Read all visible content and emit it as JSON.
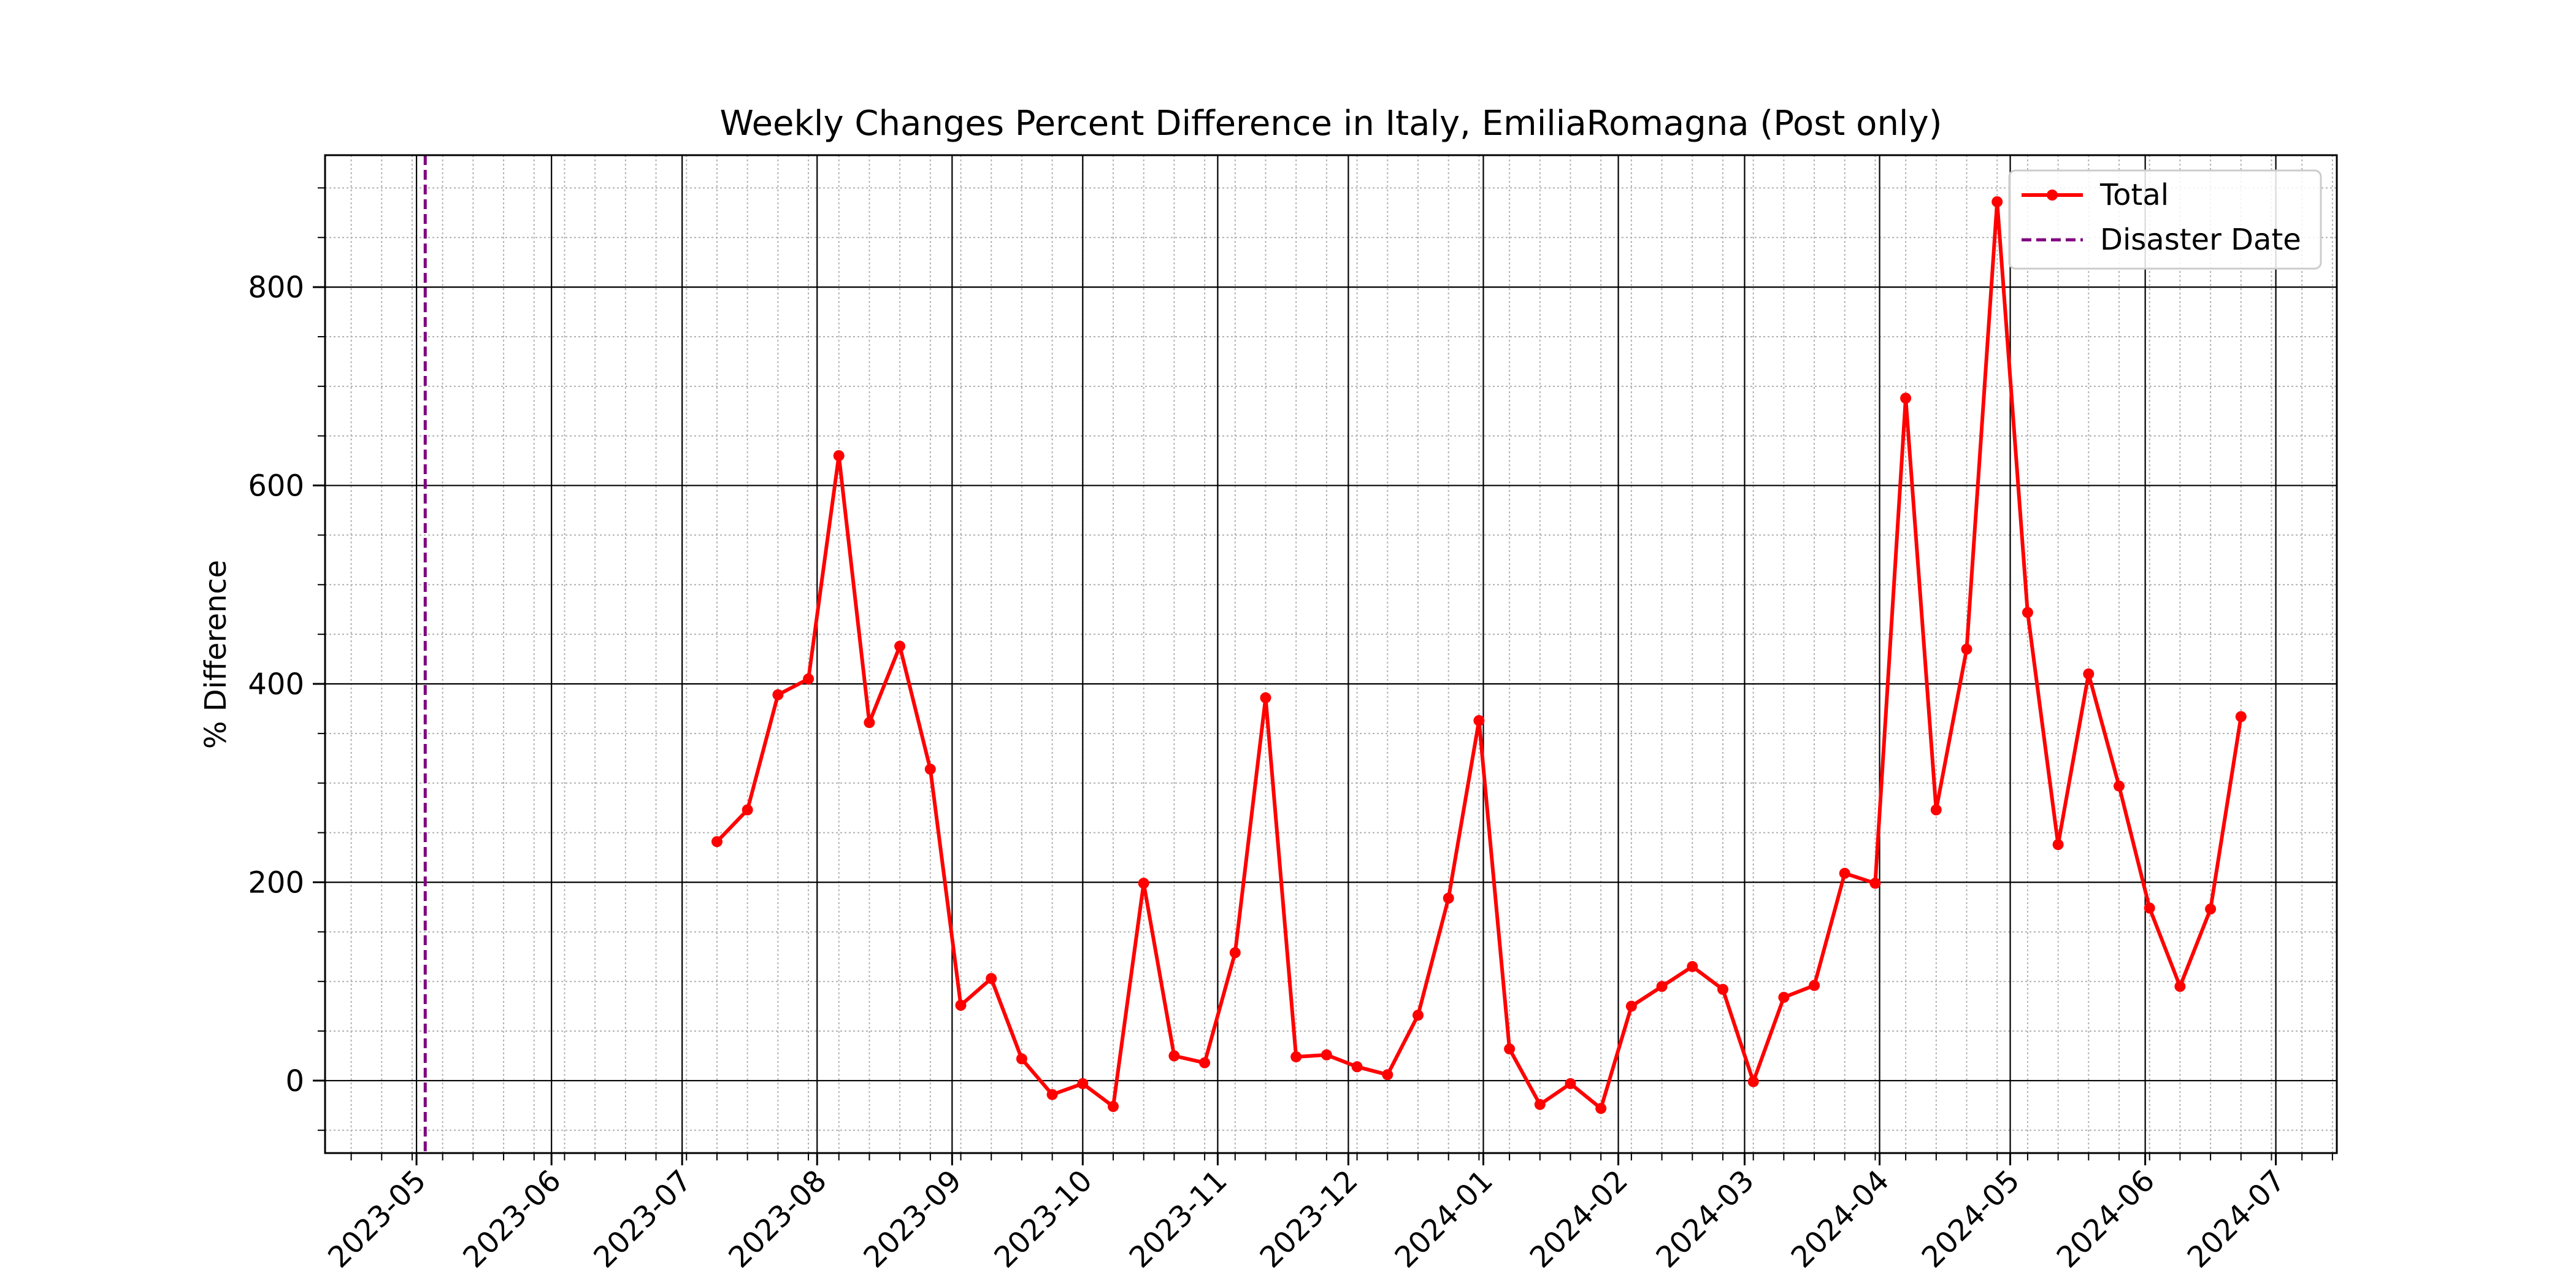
{
  "chart_data": {
    "type": "line",
    "title": "Weekly Changes Percent Difference in Italy, EmiliaRomagna (Post only)",
    "xlabel": "",
    "ylabel": "% Difference",
    "x_ticks": [
      "2023-05",
      "2023-06",
      "2023-07",
      "2023-08",
      "2023-09",
      "2023-10",
      "2023-11",
      "2023-12",
      "2024-01",
      "2024-02",
      "2024-03",
      "2024-04",
      "2024-05",
      "2024-06",
      "2024-07"
    ],
    "y_ticks": [
      0,
      200,
      400,
      600,
      800
    ],
    "xlim": [
      "2023-04-10",
      "2024-07-15"
    ],
    "ylim": [
      -73,
      933
    ],
    "grid": {
      "major": true,
      "minor": true
    },
    "legend": {
      "position": "upper right",
      "entries": [
        "Total",
        "Disaster Date"
      ]
    },
    "colors": {
      "series": "#ff0000",
      "disaster": "#800080"
    },
    "series": [
      {
        "name": "Total",
        "x": [
          "2023-07-09",
          "2023-07-16",
          "2023-07-23",
          "2023-07-30",
          "2023-08-06",
          "2023-08-13",
          "2023-08-20",
          "2023-08-27",
          "2023-09-03",
          "2023-09-10",
          "2023-09-17",
          "2023-09-24",
          "2023-10-01",
          "2023-10-08",
          "2023-10-15",
          "2023-10-22",
          "2023-10-29",
          "2023-11-05",
          "2023-11-12",
          "2023-11-19",
          "2023-11-26",
          "2023-12-03",
          "2023-12-10",
          "2023-12-17",
          "2023-12-24",
          "2023-12-31",
          "2024-01-07",
          "2024-01-14",
          "2024-01-21",
          "2024-01-28",
          "2024-02-04",
          "2024-02-11",
          "2024-02-18",
          "2024-02-25",
          "2024-03-03",
          "2024-03-10",
          "2024-03-17",
          "2024-03-24",
          "2024-03-31",
          "2024-04-07",
          "2024-04-14",
          "2024-04-21",
          "2024-04-28",
          "2024-05-05",
          "2024-05-12",
          "2024-05-19",
          "2024-05-26",
          "2024-06-02",
          "2024-06-09",
          "2024-06-16",
          "2024-06-23"
        ],
        "values": [
          241,
          273,
          389,
          405,
          630,
          361,
          438,
          314,
          76,
          103,
          22,
          -14,
          -3,
          -26,
          199,
          25,
          18,
          129,
          386,
          24,
          26,
          14,
          6,
          66,
          184,
          363,
          32,
          -24,
          -3,
          -28,
          75,
          95,
          115,
          92,
          -1,
          84,
          96,
          209,
          199,
          688,
          273,
          435,
          886,
          472,
          238,
          410,
          297,
          174,
          95,
          173,
          367
        ]
      }
    ],
    "disaster_date": "2023-05-03"
  }
}
